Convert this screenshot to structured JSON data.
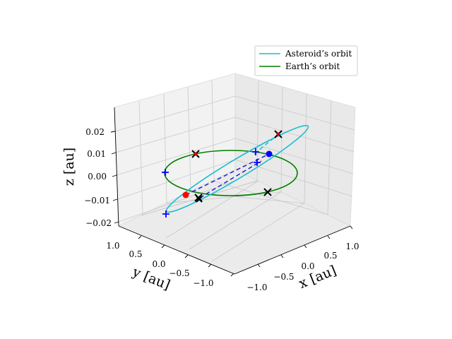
{
  "chart_data": {
    "type": "line3d",
    "title": "",
    "xlabel": "$x$ [au]",
    "ylabel": "$y$ [au]",
    "zlabel": "$z$ [au]",
    "xlabel_text": "x [au]",
    "ylabel_text": "y [au]",
    "zlabel_text": "z [au]",
    "xlim": [
      -1.2,
      1.2
    ],
    "ylim": [
      -1.2,
      1.2
    ],
    "zlim": [
      -0.025,
      0.03
    ],
    "x_ticks": [
      "−1.0",
      "−0.5",
      "0.0",
      "0.5",
      "1.0"
    ],
    "y_ticks": [
      "1.0",
      "0.5",
      "0.0",
      "−0.5",
      "−1.0"
    ],
    "z_ticks": [
      "0.02",
      "0.01",
      "0.00",
      "−0.01",
      "−0.02"
    ],
    "grid": true,
    "legend_position": "top-right",
    "legend": [
      {
        "label": "Asteroid’s orbit",
        "color": "#17becf"
      },
      {
        "label": "Earth’s orbit",
        "color": "#008000"
      }
    ],
    "series": [
      {
        "name": "Asteroid’s orbit",
        "color": "#17becf",
        "style": "solid",
        "a": 1.2,
        "e": 0.4,
        "inclination_max_z": 0.025
      },
      {
        "name": "Earth’s orbit",
        "color": "#008000",
        "style": "solid",
        "radius": 1.0,
        "z": 0.0
      }
    ],
    "markers": {
      "blue_plus": 6,
      "black_x": 6,
      "red_dot": 2,
      "blue_dot": 1
    }
  }
}
